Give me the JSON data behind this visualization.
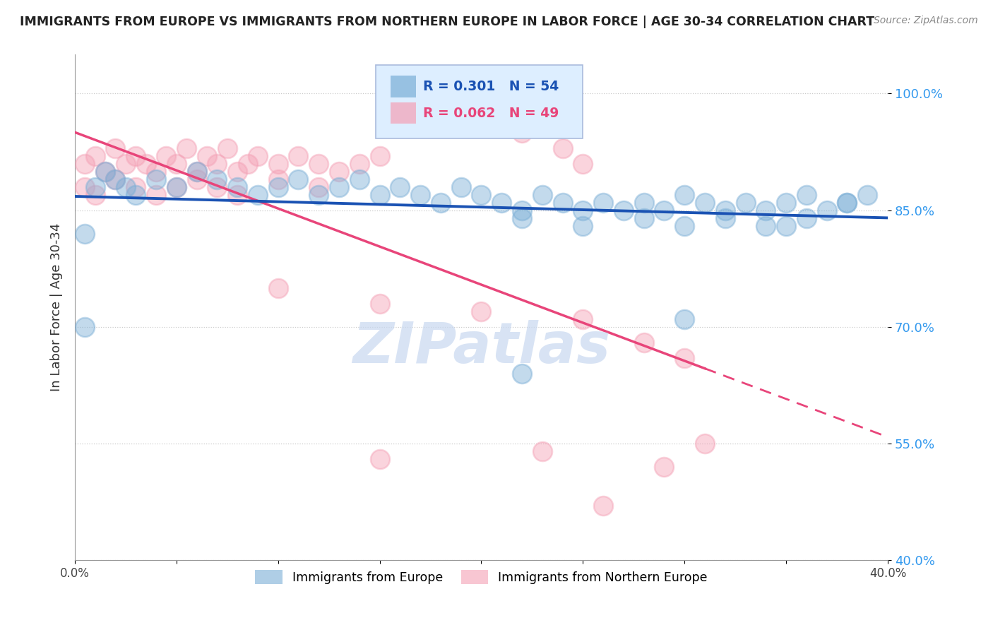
{
  "title": "IMMIGRANTS FROM EUROPE VS IMMIGRANTS FROM NORTHERN EUROPE IN LABOR FORCE | AGE 30-34 CORRELATION CHART",
  "source": "Source: ZipAtlas.com",
  "ylabel": "In Labor Force | Age 30-34",
  "xlim": [
    0.0,
    0.4
  ],
  "ylim": [
    0.4,
    1.05
  ],
  "yticks": [
    0.4,
    0.55,
    0.7,
    0.85,
    1.0
  ],
  "ytick_labels": [
    "40.0%",
    "55.0%",
    "70.0%",
    "85.0%",
    "100.0%"
  ],
  "xticks": [
    0.0,
    0.05,
    0.1,
    0.15,
    0.2,
    0.25,
    0.3,
    0.35,
    0.4
  ],
  "xtick_labels": [
    "0.0%",
    "",
    "",
    "",
    "",
    "",
    "",
    "",
    "40.0%"
  ],
  "blue_R": 0.301,
  "blue_N": 54,
  "pink_R": 0.062,
  "pink_N": 49,
  "blue_color": "#7aaed6",
  "pink_color": "#f4a0b5",
  "blue_line_color": "#1a52b3",
  "pink_line_color": "#e8457a",
  "blue_x": [
    0.005,
    0.01,
    0.015,
    0.02,
    0.025,
    0.03,
    0.04,
    0.05,
    0.06,
    0.07,
    0.08,
    0.09,
    0.1,
    0.11,
    0.12,
    0.13,
    0.14,
    0.15,
    0.16,
    0.17,
    0.18,
    0.19,
    0.2,
    0.21,
    0.22,
    0.23,
    0.24,
    0.25,
    0.26,
    0.27,
    0.28,
    0.29,
    0.3,
    0.31,
    0.32,
    0.33,
    0.34,
    0.35,
    0.36,
    0.37,
    0.38,
    0.39,
    0.005,
    0.22,
    0.25,
    0.28,
    0.3,
    0.32,
    0.34,
    0.36,
    0.38,
    0.22,
    0.3,
    0.35
  ],
  "blue_y": [
    0.82,
    0.88,
    0.9,
    0.89,
    0.88,
    0.87,
    0.89,
    0.88,
    0.9,
    0.89,
    0.88,
    0.87,
    0.88,
    0.89,
    0.87,
    0.88,
    0.89,
    0.87,
    0.88,
    0.87,
    0.86,
    0.88,
    0.87,
    0.86,
    0.85,
    0.87,
    0.86,
    0.85,
    0.86,
    0.85,
    0.86,
    0.85,
    0.87,
    0.86,
    0.85,
    0.86,
    0.85,
    0.86,
    0.87,
    0.85,
    0.86,
    0.87,
    0.7,
    0.84,
    0.83,
    0.84,
    0.83,
    0.84,
    0.83,
    0.84,
    0.86,
    0.64,
    0.71,
    0.83
  ],
  "pink_x": [
    0.005,
    0.01,
    0.015,
    0.02,
    0.025,
    0.03,
    0.035,
    0.04,
    0.045,
    0.05,
    0.055,
    0.06,
    0.065,
    0.07,
    0.075,
    0.08,
    0.085,
    0.09,
    0.1,
    0.11,
    0.12,
    0.13,
    0.14,
    0.15,
    0.005,
    0.01,
    0.02,
    0.03,
    0.04,
    0.05,
    0.06,
    0.07,
    0.08,
    0.1,
    0.12,
    0.22,
    0.24,
    0.25,
    0.1,
    0.15,
    0.2,
    0.25,
    0.28,
    0.3,
    0.15,
    0.23,
    0.26,
    0.29,
    0.31
  ],
  "pink_y": [
    0.91,
    0.92,
    0.9,
    0.93,
    0.91,
    0.92,
    0.91,
    0.9,
    0.92,
    0.91,
    0.93,
    0.9,
    0.92,
    0.91,
    0.93,
    0.9,
    0.91,
    0.92,
    0.91,
    0.92,
    0.91,
    0.9,
    0.91,
    0.92,
    0.88,
    0.87,
    0.89,
    0.88,
    0.87,
    0.88,
    0.89,
    0.88,
    0.87,
    0.89,
    0.88,
    0.95,
    0.93,
    0.91,
    0.75,
    0.73,
    0.72,
    0.71,
    0.68,
    0.66,
    0.53,
    0.54,
    0.47,
    0.52,
    0.55
  ]
}
